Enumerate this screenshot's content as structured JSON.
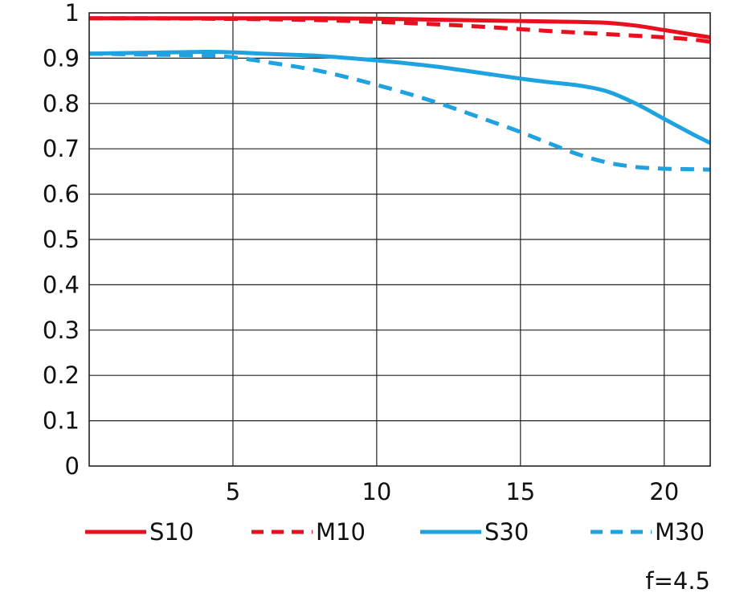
{
  "chart_data": {
    "type": "line",
    "title": "",
    "xlabel": "",
    "ylabel": "",
    "xlim": [
      0,
      21.6
    ],
    "ylim": [
      0,
      1
    ],
    "grid": true,
    "legend_position": "bottom",
    "x_ticks": [
      {
        "value": 5,
        "label": "5"
      },
      {
        "value": 10,
        "label": "10"
      },
      {
        "value": 15,
        "label": "15"
      },
      {
        "value": 20,
        "label": "20"
      }
    ],
    "y_ticks": [
      {
        "value": 0,
        "label": "0"
      },
      {
        "value": 0.1,
        "label": "0.1"
      },
      {
        "value": 0.2,
        "label": "0.2"
      },
      {
        "value": 0.3,
        "label": "0.3"
      },
      {
        "value": 0.4,
        "label": "0.4"
      },
      {
        "value": 0.5,
        "label": "0.5"
      },
      {
        "value": 0.6,
        "label": "0.6"
      },
      {
        "value": 0.7,
        "label": "0.7"
      },
      {
        "value": 0.8,
        "label": "0.8"
      },
      {
        "value": 0.9,
        "label": "0.9"
      },
      {
        "value": 1,
        "label": "1"
      }
    ],
    "series": [
      {
        "name": "S10",
        "color": "#e8101e",
        "dashed": false,
        "x": [
          0,
          2,
          4,
          6,
          8,
          10,
          12,
          14,
          16,
          17,
          18,
          19,
          20,
          21,
          21.6
        ],
        "y": [
          0.988,
          0.988,
          0.988,
          0.988,
          0.988,
          0.987,
          0.985,
          0.983,
          0.981,
          0.98,
          0.978,
          0.972,
          0.962,
          0.952,
          0.946
        ]
      },
      {
        "name": "M10",
        "color": "#e8101e",
        "dashed": true,
        "x": [
          0,
          2,
          4,
          6,
          8,
          10,
          12,
          14,
          16,
          18,
          20,
          21,
          21.6
        ],
        "y": [
          0.988,
          0.988,
          0.987,
          0.986,
          0.984,
          0.98,
          0.975,
          0.968,
          0.96,
          0.953,
          0.946,
          0.941,
          0.936
        ]
      },
      {
        "name": "S30",
        "color": "#1ea2e0",
        "dashed": false,
        "x": [
          0,
          2,
          4,
          5,
          6,
          8,
          10,
          12,
          14,
          15,
          16,
          17,
          18,
          19,
          20,
          21,
          21.6
        ],
        "y": [
          0.91,
          0.912,
          0.914,
          0.913,
          0.91,
          0.905,
          0.895,
          0.882,
          0.864,
          0.855,
          0.847,
          0.84,
          0.827,
          0.8,
          0.766,
          0.732,
          0.713
        ]
      },
      {
        "name": "M30",
        "color": "#1ea2e0",
        "dashed": true,
        "x": [
          0,
          2,
          4,
          5,
          6,
          8,
          10,
          12,
          14,
          15,
          16,
          17,
          18,
          19,
          20,
          21,
          21.6
        ],
        "y": [
          0.91,
          0.908,
          0.906,
          0.902,
          0.893,
          0.872,
          0.841,
          0.804,
          0.76,
          0.737,
          0.712,
          0.688,
          0.67,
          0.66,
          0.656,
          0.655,
          0.654
        ]
      }
    ],
    "annotation": "f=4.5"
  }
}
